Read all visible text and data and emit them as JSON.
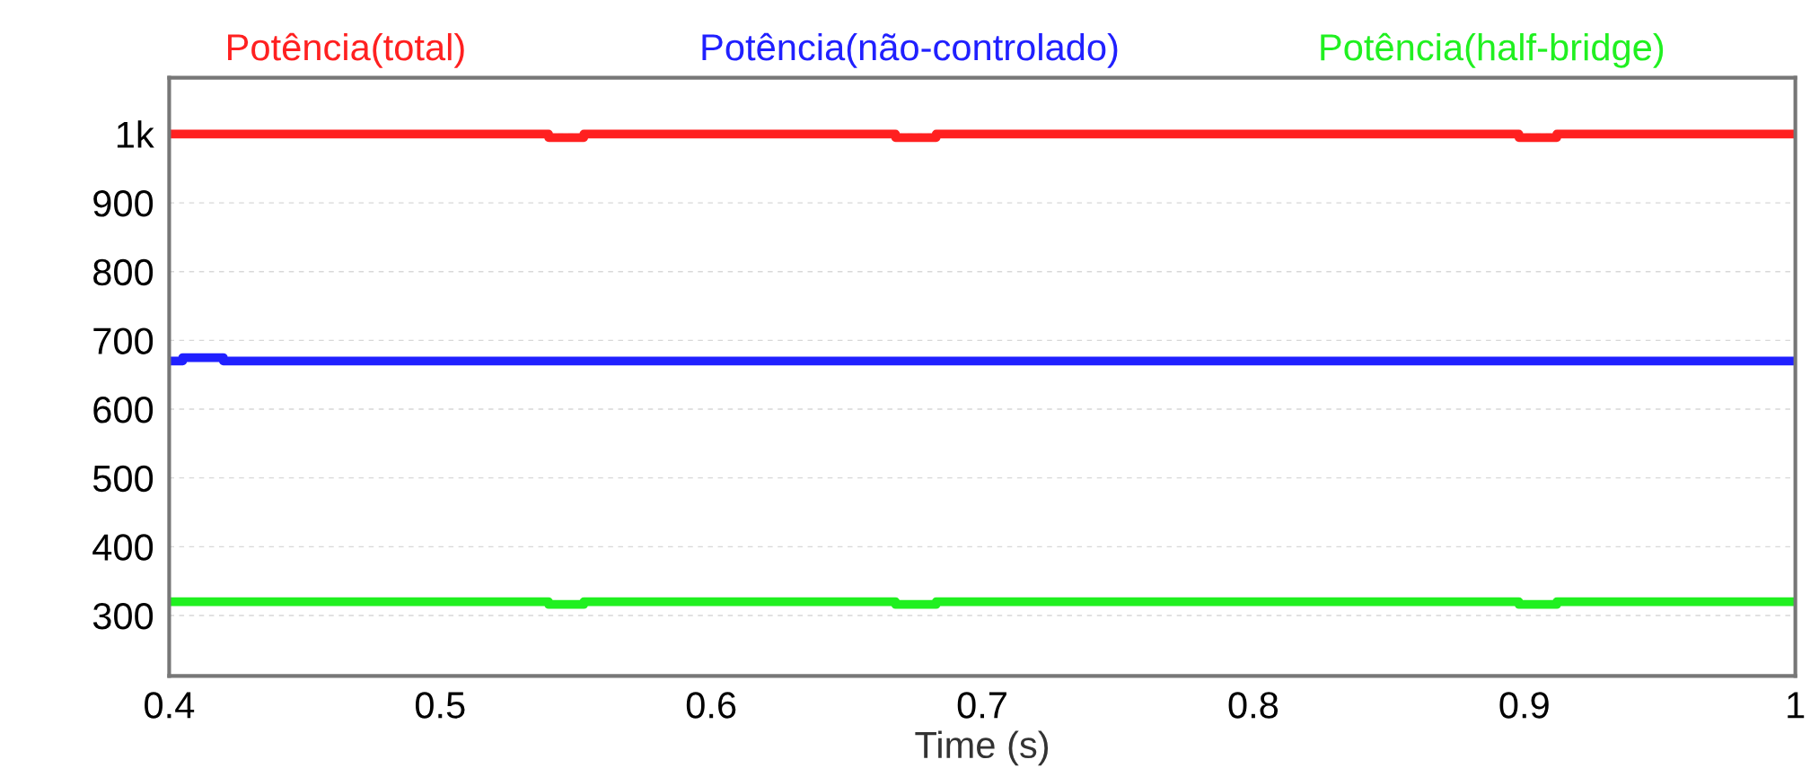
{
  "chart_data": {
    "type": "step",
    "xlabel": "Time (s)",
    "legend": "top",
    "series": [
      {
        "name": "Potência(total)",
        "color": "#ff2020",
        "x": [
          0.4,
          0.54,
          0.553,
          0.668,
          0.683,
          0.898,
          0.912,
          1
        ],
        "values": [
          1000,
          995,
          1000,
          995,
          1000,
          995,
          1000,
          1000
        ]
      },
      {
        "name": "Potência(não-controlado)",
        "color": "#2020ff",
        "x": [
          0.4,
          0.405,
          0.42,
          1
        ],
        "values": [
          670,
          675,
          670,
          670
        ]
      },
      {
        "name": "Potência(half-bridge)",
        "color": "#20f020",
        "x": [
          0.4,
          0.54,
          0.553,
          0.668,
          0.683,
          0.898,
          0.912,
          1
        ],
        "values": [
          320,
          316,
          320,
          316,
          320,
          316,
          320,
          320
        ]
      }
    ],
    "xlim": [
      0.4,
      1
    ],
    "xticks": [
      0.4,
      0.5,
      0.6,
      0.7,
      0.8,
      0.9,
      1
    ],
    "ylim": [
      212,
      1082
    ],
    "yticks": [
      300,
      400,
      500,
      600,
      700,
      800,
      900,
      {
        "value": 1000,
        "label": "1k"
      }
    ],
    "grid": "y",
    "line_style": "solid"
  }
}
